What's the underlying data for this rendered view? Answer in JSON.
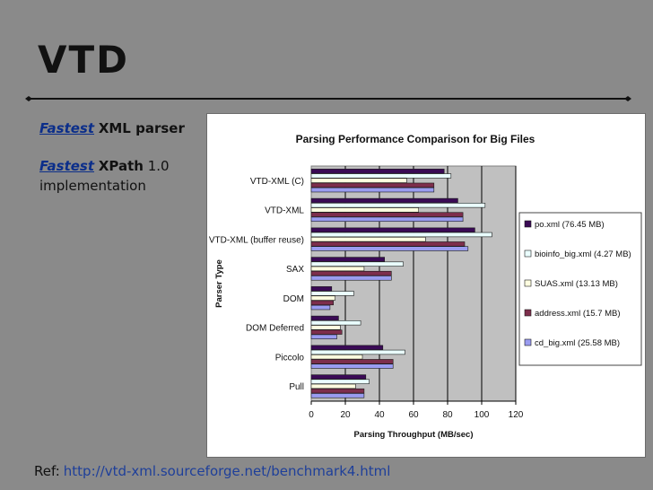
{
  "slide": {
    "title": "VTD",
    "bullet1": {
      "keyword": "Fastest",
      "rest": "XML parser"
    },
    "bullet2": {
      "keyword": "Fastest",
      "bold": "XPath",
      "rest1": "1.0",
      "rest2": "implementation"
    },
    "ref": {
      "label": "Ref:",
      "url": "http://vtd-xml.sourceforge.net/benchmark4.html"
    }
  },
  "colors": {
    "background": "#8a8a8a",
    "link": "#1e3f9a",
    "plot_bg": "#c0c0c0",
    "series": [
      "#3a0a55",
      "#eaffff",
      "#fffee0",
      "#7d2e4c",
      "#9a9cf0"
    ]
  },
  "chart_data": {
    "type": "bar",
    "orientation": "horizontal",
    "title": "Parsing Performance Comparison for Big Files",
    "xlabel": "Parsing Throughput (MB/sec)",
    "ylabel": "Parser Type",
    "xlim": [
      0,
      120
    ],
    "xticks": [
      0,
      20,
      40,
      60,
      80,
      100,
      120
    ],
    "grid": true,
    "legend_position": "right",
    "categories": [
      "VTD-XML (C)",
      "VTD-XML",
      "VTD-XML (buffer reuse)",
      "SAX",
      "DOM",
      "DOM Deferred",
      "Piccolo",
      "Pull"
    ],
    "series": [
      {
        "name": "po.xml (76.45 MB)",
        "values": [
          78,
          86,
          96,
          43,
          12,
          16,
          42,
          32
        ]
      },
      {
        "name": "bioinfo_big.xml (4.27 MB)",
        "values": [
          82,
          102,
          106,
          54,
          25,
          29,
          55,
          34
        ]
      },
      {
        "name": "SUAS.xml (13.13 MB)",
        "values": [
          56,
          63,
          67,
          31,
          14,
          17,
          30,
          26
        ]
      },
      {
        "name": "address.xml (15.7 MB)",
        "values": [
          72,
          89,
          90,
          47,
          13,
          18,
          48,
          31
        ]
      },
      {
        "name": "cd_big.xml (25.58 MB)",
        "values": [
          72,
          89,
          92,
          47,
          11,
          15,
          48,
          31
        ]
      }
    ]
  }
}
